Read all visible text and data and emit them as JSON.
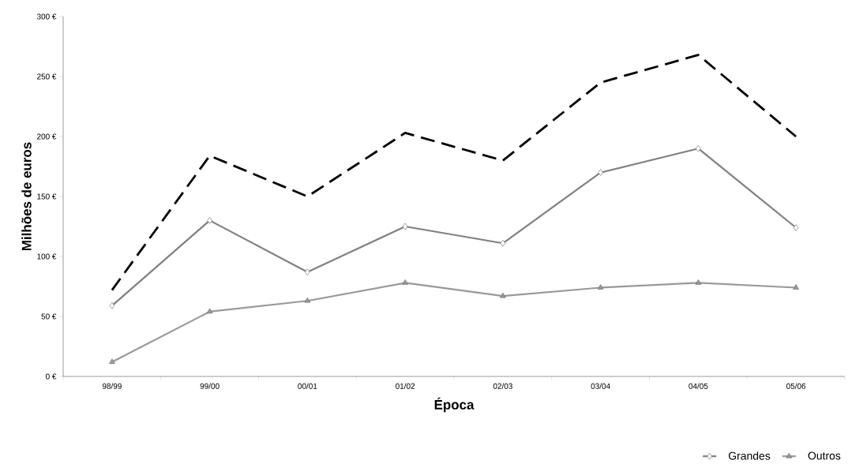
{
  "chart_data": {
    "type": "line",
    "xlabel": "Época",
    "ylabel": "Milhões de euros",
    "categories": [
      "98/99",
      "99/00",
      "00/01",
      "01/02",
      "02/03",
      "03/04",
      "04/05",
      "05/06"
    ],
    "series": [
      {
        "color": "#000000",
        "line_style": "dashed",
        "marker": "none",
        "values": [
          72,
          184,
          150,
          203,
          180,
          245,
          268,
          200
        ]
      },
      {
        "name": "Grandes",
        "color": "#808080",
        "line_style": "solid",
        "marker": "diamond",
        "values": [
          59,
          130,
          87,
          125,
          111,
          170,
          190,
          124
        ]
      },
      {
        "name": "Outros",
        "color": "#999999",
        "line_style": "solid",
        "marker": "triangle",
        "values": [
          12,
          54,
          63,
          78,
          67,
          74,
          78,
          74
        ]
      }
    ],
    "ylim": [
      0,
      300
    ],
    "yticks": [
      {
        "value": 0,
        "label": "0 €"
      },
      {
        "value": 50,
        "label": "50 €"
      },
      {
        "value": 100,
        "label": "100 €"
      },
      {
        "value": 150,
        "label": "150 €"
      },
      {
        "value": 200,
        "label": "200 €"
      },
      {
        "value": 250,
        "label": "250 €"
      },
      {
        "value": 300,
        "label": "300 €"
      }
    ],
    "grid": false,
    "legend": "bottom right"
  }
}
